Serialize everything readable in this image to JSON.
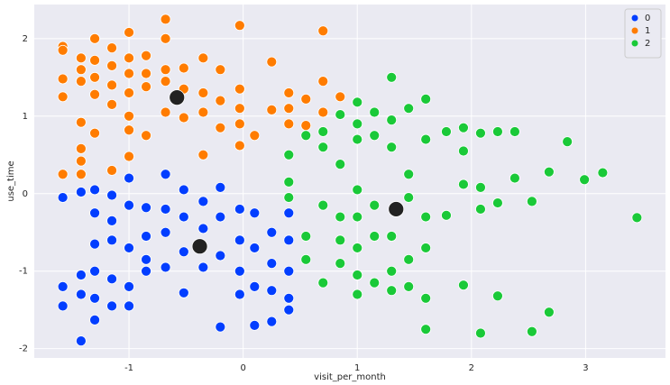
{
  "chart_data": {
    "type": "scatter",
    "x_label": "visit_per_month",
    "y_label": "use_time",
    "xlim": [
      -1.83,
      3.7
    ],
    "ylim": [
      -2.12,
      2.44
    ],
    "xticks": [
      -1,
      0,
      1,
      2,
      3
    ],
    "yticks": [
      -2,
      -1,
      0,
      1,
      2
    ],
    "grid": true,
    "legend": "upper right",
    "series": [
      {
        "name": "0",
        "color": "#023eff",
        "x": [
          -1.58,
          -1.58,
          -1.58,
          -1.42,
          -1.42,
          -1.42,
          -1.42,
          -1.3,
          -1.3,
          -1.3,
          -1.3,
          -1.3,
          -1.3,
          -1.15,
          -1.15,
          -1.15,
          -1.15,
          -1.15,
          -1.0,
          -1.0,
          -1.0,
          -1.0,
          -1.0,
          -0.85,
          -0.85,
          -0.85,
          -0.85,
          -0.68,
          -0.68,
          -0.68,
          -0.68,
          -0.52,
          -0.52,
          -0.52,
          -0.52,
          -0.35,
          -0.35,
          -0.35,
          -0.2,
          -0.2,
          -0.2,
          -0.2,
          -0.03,
          -0.03,
          -0.03,
          -0.03,
          0.1,
          0.1,
          0.1,
          0.1,
          0.25,
          0.25,
          0.25,
          0.25,
          0.4,
          0.4,
          0.4,
          0.4,
          0.4
        ],
        "y": [
          -0.05,
          -1.2,
          -1.45,
          0.02,
          -1.05,
          -1.3,
          -1.9,
          0.05,
          -0.25,
          -0.65,
          -1.0,
          -1.35,
          -1.63,
          -0.02,
          -0.35,
          -0.6,
          -1.1,
          -1.45,
          0.2,
          -0.15,
          -0.7,
          -1.2,
          -1.45,
          -0.18,
          -0.55,
          -0.85,
          -1.0,
          0.25,
          -0.2,
          -0.5,
          -0.95,
          0.05,
          -0.3,
          -0.75,
          -1.28,
          -0.1,
          -0.45,
          -0.95,
          0.08,
          -0.3,
          -0.8,
          -1.72,
          -0.2,
          -0.6,
          -1.0,
          -1.3,
          -0.25,
          -0.7,
          -1.2,
          -1.7,
          -0.5,
          -0.9,
          -1.25,
          -1.65,
          -0.25,
          -0.6,
          -1.0,
          -1.35,
          -1.5
        ]
      },
      {
        "name": "1",
        "color": "#ff7c00",
        "x": [
          -1.58,
          -1.58,
          -1.58,
          -1.58,
          -1.58,
          -1.42,
          -1.42,
          -1.42,
          -1.42,
          -1.42,
          -1.42,
          -1.42,
          -1.3,
          -1.3,
          -1.3,
          -1.3,
          -1.3,
          -1.15,
          -1.15,
          -1.15,
          -1.15,
          -1.15,
          -1.0,
          -1.0,
          -1.0,
          -1.0,
          -1.0,
          -1.0,
          -1.0,
          -0.85,
          -0.85,
          -0.85,
          -0.85,
          -0.68,
          -0.68,
          -0.68,
          -0.68,
          -0.68,
          -0.52,
          -0.52,
          -0.52,
          -0.35,
          -0.35,
          -0.35,
          -0.35,
          -0.2,
          -0.2,
          -0.2,
          -0.03,
          -0.03,
          -0.03,
          -0.03,
          -0.03,
          0.1,
          0.25,
          0.25,
          0.4,
          0.4,
          0.4,
          0.55,
          0.55,
          0.7,
          0.7,
          0.7,
          0.85
        ],
        "y": [
          1.9,
          1.85,
          1.48,
          1.25,
          0.25,
          1.75,
          1.6,
          1.45,
          0.92,
          0.58,
          0.42,
          0.25,
          2.0,
          1.72,
          1.5,
          1.28,
          0.78,
          1.88,
          1.65,
          1.4,
          1.15,
          0.3,
          2.08,
          1.75,
          1.55,
          1.3,
          1.0,
          0.82,
          0.48,
          1.78,
          1.55,
          1.38,
          0.75,
          2.25,
          2.0,
          1.6,
          1.45,
          1.05,
          1.62,
          1.35,
          0.98,
          1.75,
          1.3,
          1.05,
          0.5,
          1.6,
          1.2,
          0.85,
          2.17,
          1.35,
          1.1,
          0.9,
          0.62,
          0.75,
          1.7,
          1.08,
          1.3,
          1.1,
          0.9,
          1.22,
          0.88,
          2.1,
          1.45,
          1.05,
          1.25
        ]
      },
      {
        "name": "2",
        "color": "#1ac938",
        "x": [
          0.4,
          0.4,
          0.4,
          0.55,
          0.55,
          0.55,
          0.7,
          0.7,
          0.7,
          0.7,
          0.85,
          0.85,
          0.85,
          0.85,
          0.85,
          1.0,
          1.0,
          1.0,
          1.0,
          1.0,
          1.0,
          1.0,
          1.0,
          1.15,
          1.15,
          1.15,
          1.15,
          1.15,
          1.3,
          1.3,
          1.3,
          1.3,
          1.3,
          1.3,
          1.45,
          1.45,
          1.45,
          1.45,
          1.45,
          1.6,
          1.6,
          1.6,
          1.6,
          1.6,
          1.6,
          1.78,
          1.78,
          1.93,
          1.93,
          1.93,
          1.93,
          2.08,
          2.08,
          2.08,
          2.08,
          2.23,
          2.23,
          2.23,
          2.38,
          2.38,
          2.53,
          2.53,
          2.68,
          2.68,
          2.84,
          2.99,
          3.15,
          3.45
        ],
        "y": [
          0.5,
          0.15,
          -0.05,
          0.75,
          -0.55,
          -0.85,
          0.8,
          0.6,
          -0.15,
          -1.15,
          1.02,
          0.38,
          -0.3,
          -0.6,
          -0.9,
          1.18,
          0.9,
          0.7,
          0.05,
          -0.3,
          -0.7,
          -1.05,
          -1.3,
          1.05,
          0.75,
          -0.15,
          -0.55,
          -1.15,
          1.5,
          0.95,
          0.6,
          -0.55,
          -1.0,
          -1.25,
          1.1,
          0.25,
          -0.05,
          -0.85,
          -1.2,
          1.22,
          0.7,
          -0.3,
          -0.7,
          -1.35,
          -1.75,
          0.8,
          -0.28,
          0.85,
          0.55,
          0.12,
          -1.18,
          0.78,
          0.08,
          -0.2,
          -1.8,
          0.8,
          -0.12,
          -1.32,
          0.8,
          0.2,
          -0.1,
          -1.78,
          0.28,
          -1.53,
          0.67,
          0.18,
          0.27,
          -0.31
        ]
      }
    ],
    "centroids": {
      "color": "#222222",
      "x": [
        -0.58,
        -0.38,
        1.34
      ],
      "y": [
        1.24,
        -0.68,
        -0.2
      ]
    }
  }
}
